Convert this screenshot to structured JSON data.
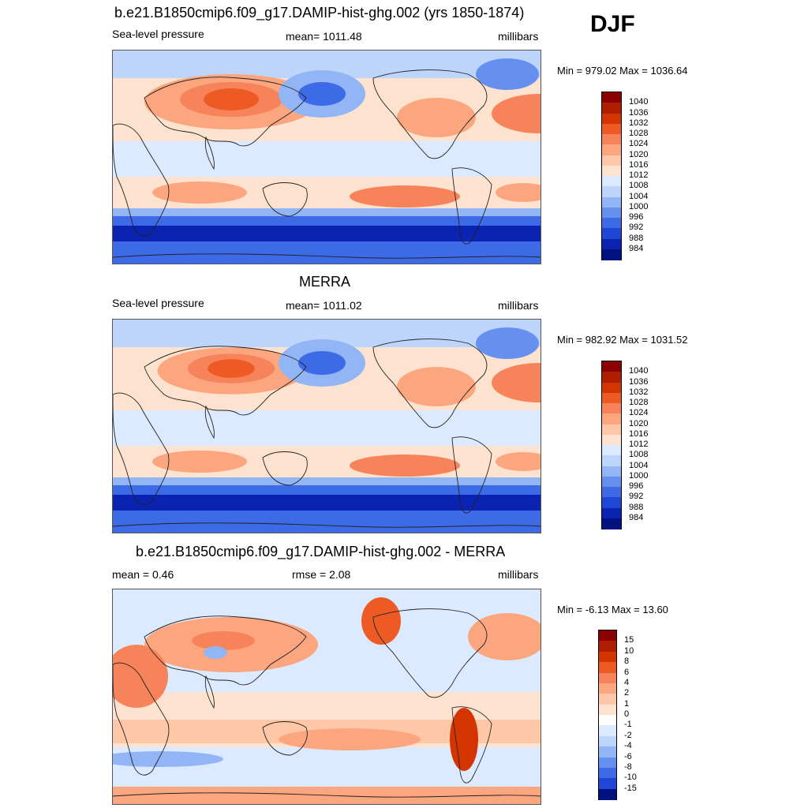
{
  "season": "DJF",
  "panels": [
    {
      "title": "b.e21.B1850cmip6.f09_g17.DAMIP-hist-ghg.002 (yrs 1850-1874)",
      "left": "Sea-level pressure",
      "center": "mean= 1011.48",
      "right": "millibars",
      "minmax": "Min = 979.02 Max = 1036.64",
      "colorbar": {
        "labels": [
          "1040",
          "1036",
          "1032",
          "1028",
          "1024",
          "1020",
          "1016",
          "1012",
          "1008",
          "1004",
          "1000",
          "996",
          "992",
          "988",
          "984"
        ],
        "colors": [
          "#8b0000",
          "#b01e00",
          "#d43500",
          "#ee5a24",
          "#f7835a",
          "#fba67f",
          "#fdc7a8",
          "#fde3cf",
          "#dceaff",
          "#bdd5fb",
          "#92b5f5",
          "#6590ef",
          "#3d6ae6",
          "#1f46d4",
          "#0a23b0",
          "#001280"
        ]
      },
      "map_kind": "slp"
    },
    {
      "title": "MERRA",
      "left": "Sea-level pressure",
      "center": "mean= 1011.02",
      "right": "millibars",
      "minmax": "Min = 982.92 Max = 1031.52",
      "colorbar": {
        "labels": [
          "1040",
          "1036",
          "1032",
          "1028",
          "1024",
          "1020",
          "1016",
          "1012",
          "1008",
          "1004",
          "1000",
          "996",
          "992",
          "988",
          "984"
        ],
        "colors": [
          "#8b0000",
          "#b01e00",
          "#d43500",
          "#ee5a24",
          "#f7835a",
          "#fba67f",
          "#fdc7a8",
          "#fde3cf",
          "#dceaff",
          "#bdd5fb",
          "#92b5f5",
          "#6590ef",
          "#3d6ae6",
          "#1f46d4",
          "#0a23b0",
          "#001280"
        ]
      },
      "map_kind": "slp2"
    },
    {
      "title": "b.e21.B1850cmip6.f09_g17.DAMIP-hist-ghg.002 - MERRA",
      "left": "mean =   0.46",
      "center": "rmse =   2.08",
      "right": "millibars",
      "minmax": "Min =  -6.13 Max =  13.60",
      "colorbar": {
        "labels": [
          "15",
          "10",
          "8",
          "6",
          "4",
          "2",
          "1",
          "0",
          "-1",
          "-2",
          "-4",
          "-6",
          "-8",
          "-10",
          "-15"
        ],
        "colors": [
          "#8b0000",
          "#b01e00",
          "#d43500",
          "#ee5a24",
          "#f7835a",
          "#fba67f",
          "#fdc7a8",
          "#fde3cf",
          "#ffffff",
          "#dceaff",
          "#bdd5fb",
          "#92b5f5",
          "#6590ef",
          "#3d6ae6",
          "#1f46d4",
          "#001280"
        ]
      },
      "map_kind": "diff"
    }
  ]
}
